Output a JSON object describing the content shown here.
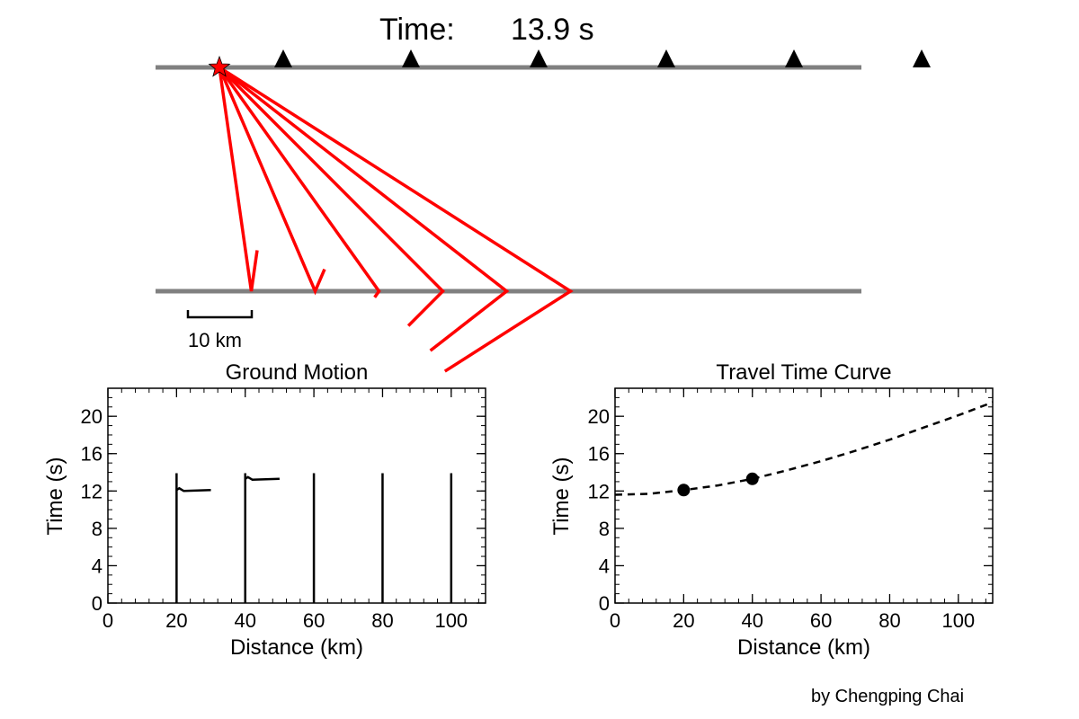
{
  "header": {
    "time_label": "Time:",
    "time_value": "13.9 s"
  },
  "scale_bar": {
    "label": "10 km",
    "length_km": 10
  },
  "model": {
    "layer_color": "#808080",
    "ray_color": "#ff0000",
    "source_x_km": 10,
    "station_x_km": [
      20,
      40,
      60,
      80,
      100,
      120
    ],
    "layer_thickness_km": 35
  },
  "credit": "by Chengping Chai",
  "chart_data": [
    {
      "type": "line",
      "title": "Ground Motion",
      "xlabel": "Distance (km)",
      "ylabel": "Time (s)",
      "xlim": [
        0,
        110
      ],
      "ylim": [
        0,
        23
      ],
      "xticks": [
        0,
        20,
        40,
        60,
        80,
        100
      ],
      "yticks": [
        0,
        4,
        8,
        12,
        16,
        20
      ],
      "traces": [
        {
          "x": 20,
          "t_max": 13.9,
          "pulse": {
            "t": 12.1,
            "amplitude_km": 10
          }
        },
        {
          "x": 40,
          "t_max": 13.9,
          "pulse": {
            "t": 13.3,
            "amplitude_km": 10
          }
        },
        {
          "x": 60,
          "t_max": 13.9
        },
        {
          "x": 80,
          "t_max": 13.9
        },
        {
          "x": 100,
          "t_max": 13.9
        }
      ]
    },
    {
      "type": "line",
      "title": "Travel Time Curve",
      "xlabel": "Distance (km)",
      "ylabel": "Time (s)",
      "xlim": [
        0,
        110
      ],
      "ylim": [
        0,
        23
      ],
      "xticks": [
        0,
        20,
        40,
        60,
        80,
        100
      ],
      "yticks": [
        0,
        4,
        8,
        12,
        16,
        20
      ],
      "curve": {
        "x": [
          0,
          10,
          20,
          30,
          40,
          50,
          60,
          70,
          80,
          90,
          100,
          110
        ],
        "y": [
          11.6,
          11.7,
          12.1,
          12.6,
          13.3,
          14.2,
          15.2,
          16.3,
          17.5,
          18.8,
          20.1,
          21.5
        ]
      },
      "points": [
        {
          "x": 20,
          "y": 12.1
        },
        {
          "x": 40,
          "y": 13.3
        }
      ]
    }
  ]
}
